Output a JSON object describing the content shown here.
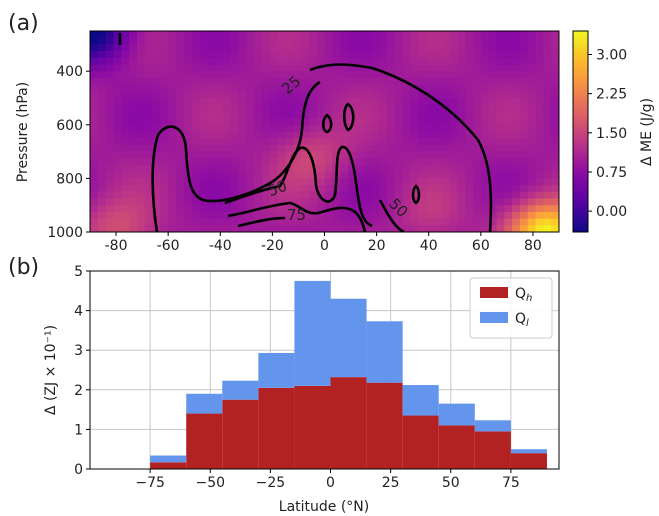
{
  "chart_data": [
    {
      "panel_label": "(a)",
      "type": "heatmap",
      "xlabel": "",
      "ylabel": "Pressure (hPa)",
      "xlim": [
        -90,
        90
      ],
      "ylim": [
        1000,
        250
      ],
      "xticks": [
        "-80",
        "-60",
        "-40",
        "-20",
        "0",
        "20",
        "40",
        "60",
        "80"
      ],
      "xtick_values": [
        -80,
        -60,
        -40,
        -20,
        0,
        20,
        40,
        60,
        80
      ],
      "yticks": [
        "400",
        "600",
        "800",
        "1000"
      ],
      "ytick_values": [
        400,
        600,
        800,
        1000
      ],
      "colormap": "plasma",
      "colorbar": {
        "label": "Δ ME (J/g)",
        "ticks": [
          "0.00",
          "0.75",
          "1.50",
          "2.25",
          "3.00"
        ],
        "tick_values": [
          0,
          0.75,
          1.5,
          2.25,
          3.0
        ],
        "range": [
          -0.4,
          3.45
        ]
      },
      "field_hotspots": [
        {
          "lat": 85,
          "p": 1000,
          "value": 3.4
        },
        {
          "lat": -80,
          "p": 990,
          "value": 1.6
        },
        {
          "lat": -5,
          "p": 720,
          "value": 1.5
        },
        {
          "lat": 40,
          "p": 940,
          "value": 1.2
        },
        {
          "lat": -88,
          "p": 260,
          "value": -0.4
        }
      ],
      "contour_labels": [
        "25",
        "50",
        "75",
        "50"
      ],
      "contour_levels": [
        25,
        50,
        75
      ]
    },
    {
      "panel_label": "(b)",
      "type": "bar",
      "stacked": true,
      "xlabel": "Latitude (°N)",
      "ylabel": "Δ (ZJ × 10⁻¹)",
      "xlim": [
        -100,
        95
      ],
      "ylim": [
        0,
        5
      ],
      "xticks": [
        "−75",
        "−50",
        "−25",
        "0",
        "25",
        "50",
        "75"
      ],
      "xtick_values": [
        -75,
        -50,
        -25,
        0,
        25,
        50,
        75
      ],
      "yticks": [
        "0",
        "1",
        "2",
        "3",
        "4",
        "5"
      ],
      "ytick_values": [
        0,
        1,
        2,
        3,
        4,
        5
      ],
      "grid": true,
      "legend_position": "top-right",
      "bin_edges": [
        -75,
        -60,
        -45,
        -30,
        -15,
        0,
        15,
        30,
        45,
        60,
        75,
        90
      ],
      "series": [
        {
          "name": "Q_h",
          "legend_text": "Q",
          "legend_sub": "h",
          "color": "#b22222",
          "values": [
            0.17,
            1.4,
            1.75,
            2.05,
            2.1,
            2.32,
            2.18,
            1.35,
            1.1,
            0.95,
            0.4
          ]
        },
        {
          "name": "Q_l",
          "legend_text": "Q",
          "legend_sub": "l",
          "color": "#6495ed",
          "values": [
            0.17,
            0.5,
            0.48,
            0.88,
            2.65,
            1.98,
            1.55,
            0.77,
            0.55,
            0.28,
            0.1
          ]
        }
      ]
    }
  ]
}
